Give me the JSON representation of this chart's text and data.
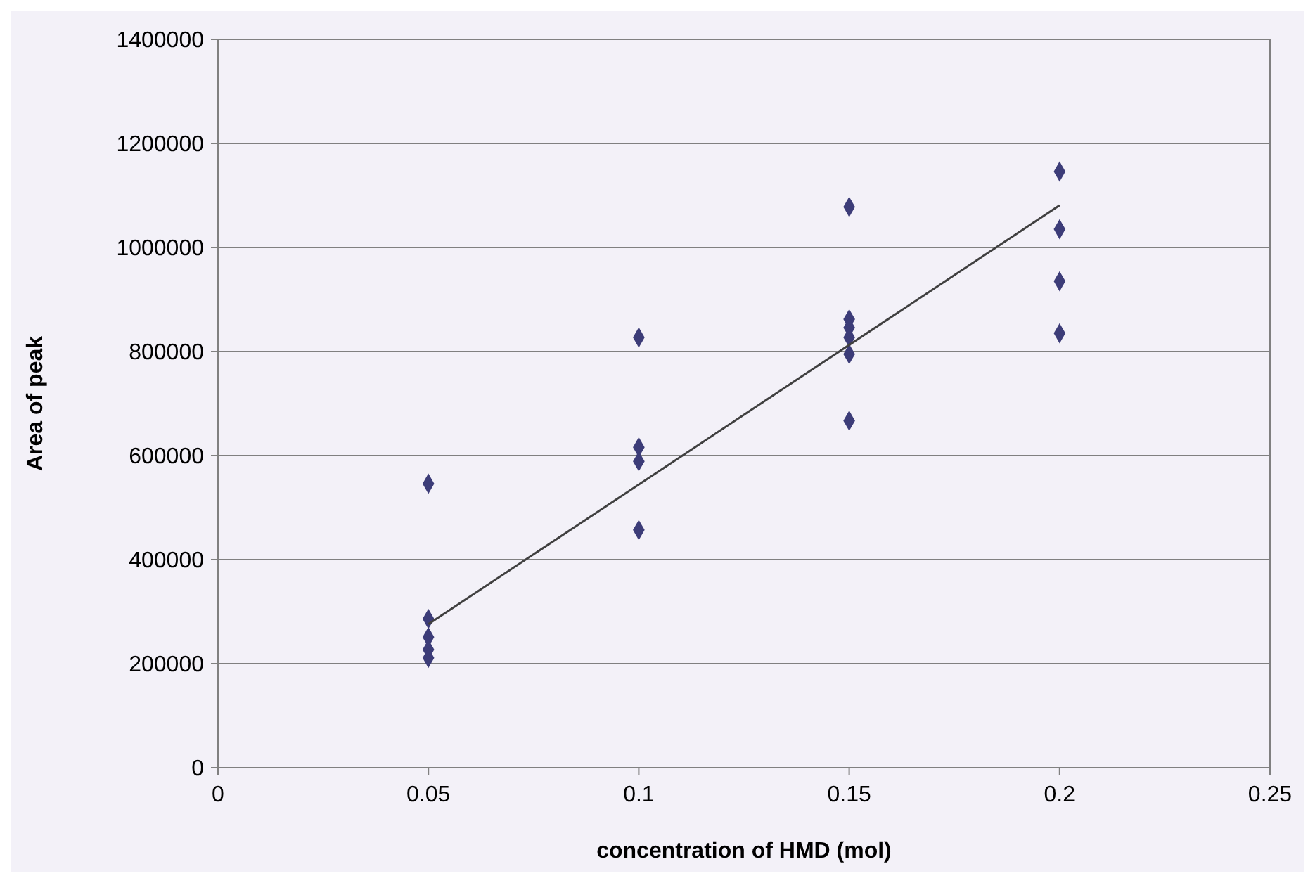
{
  "chart_data": {
    "type": "scatter",
    "xlabel": "concentration of HMD (mol)",
    "ylabel": "Area of peak",
    "xlim": [
      0,
      0.25
    ],
    "xticks": [
      0,
      0.05,
      0.1,
      0.15,
      0.2,
      0.25
    ],
    "ylim": [
      0,
      1400000
    ],
    "yticks": [
      0,
      200000,
      400000,
      600000,
      800000,
      1000000,
      1200000,
      1400000
    ],
    "grid": "y",
    "series": [
      {
        "color": "#3c3c78",
        "marker": "diamond",
        "x": [
          0.05,
          0.05,
          0.05,
          0.05,
          0.05,
          0.1,
          0.1,
          0.1,
          0.1,
          0.15,
          0.15,
          0.15,
          0.15,
          0.15,
          0.15,
          0.2,
          0.2,
          0.2,
          0.2
        ],
        "values": [
          546000,
          286000,
          251000,
          227000,
          211000,
          827000,
          616000,
          589000,
          457000,
          1078000,
          862000,
          846000,
          827000,
          795000,
          667000,
          1146000,
          1035000,
          935000,
          835000
        ]
      },
      {
        "type": "line",
        "color": "#404040",
        "marker": "none",
        "x": [
          0.05,
          0.2
        ],
        "values": [
          276000,
          1081000
        ]
      }
    ]
  }
}
